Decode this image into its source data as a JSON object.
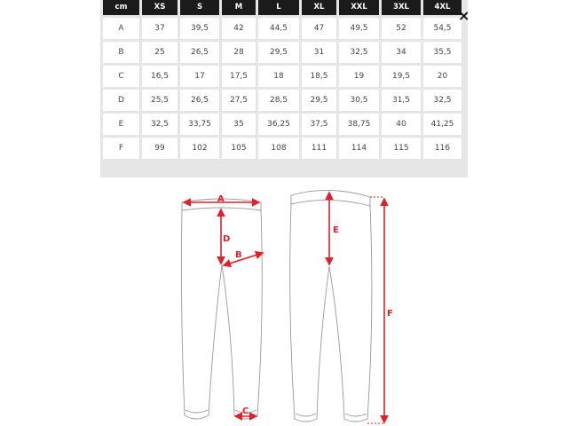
{
  "size_table": {
    "headers": [
      "cm",
      "XS",
      "S",
      "M",
      "L",
      "XL",
      "XXL",
      "3XL",
      "4XL"
    ],
    "rows": [
      [
        "A",
        "37",
        "39,5",
        "42",
        "44,5",
        "47",
        "49,5",
        "52",
        "54,5"
      ],
      [
        "B",
        "25",
        "26,5",
        "28",
        "29,5",
        "31",
        "32,5",
        "34",
        "35,5"
      ],
      [
        "C",
        "16,5",
        "17",
        "17,5",
        "18",
        "18,5",
        "19",
        "19,5",
        "20"
      ],
      [
        "D",
        "25,5",
        "26,5",
        "27,5",
        "28,5",
        "29,5",
        "30,5",
        "31,5",
        "32,5"
      ],
      [
        "E",
        "32,5",
        "33,75",
        "35",
        "36,25",
        "37,5",
        "38,75",
        "40",
        "41,25"
      ],
      [
        "F",
        "99",
        "102",
        "105",
        "108",
        "111",
        "114",
        "115",
        "116"
      ]
    ]
  },
  "close_button": {
    "label": "×",
    "icon": "close-icon"
  },
  "diagram": {
    "labels": {
      "A": "A",
      "B": "B",
      "C": "C",
      "D": "D",
      "E": "E",
      "F": "F"
    },
    "accent_color": "#e0202a"
  }
}
